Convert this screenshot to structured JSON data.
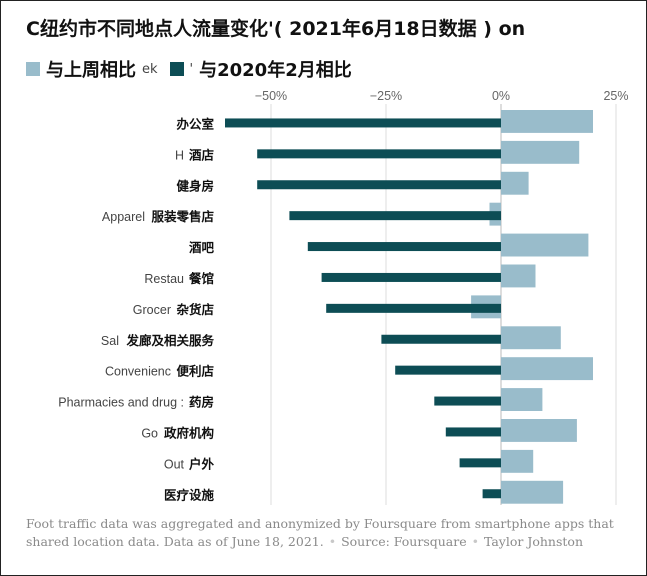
{
  "header": {
    "title_prefix_ghost": "C",
    "title": "纽约市不同地点人流量变化",
    "title_mid_ghost": "'",
    "title_paren": "( 2021年6月18日数据 )",
    "title_suffix_ghost": "on"
  },
  "legend": {
    "week_label": "与上周相比",
    "week_ghost": "ek",
    "feb_ghost": "'",
    "feb_label": "与2020年2月相比"
  },
  "colors": {
    "week": "#99bccb",
    "feb": "#0d4d55",
    "grid": "#dddddd",
    "zero": "#bbbbbb",
    "tick": "#666666"
  },
  "chart_data": {
    "type": "bar",
    "orientation": "horizontal",
    "title": "纽约市不同地点人流量变化( 2021年6月18日数据 )",
    "xlim": [
      -60,
      25
    ],
    "ticks": [
      -50,
      -25,
      0,
      25
    ],
    "tick_labels": [
      "−50%",
      "−25%",
      "0%",
      "25%"
    ],
    "categories": [
      {
        "en": "",
        "zh": "办公室"
      },
      {
        "en": "H",
        "zh": "酒店"
      },
      {
        "en": "",
        "zh": "健身房"
      },
      {
        "en": "Apparel",
        "zh": "服装零售店"
      },
      {
        "en": "",
        "zh": "酒吧"
      },
      {
        "en": "Restau",
        "zh": "餐馆"
      },
      {
        "en": "Grocer",
        "zh": "杂货店"
      },
      {
        "en": "Sal",
        "zh": "发廊及相关服务"
      },
      {
        "en": "Convenienc",
        "zh": "便利店"
      },
      {
        "en": "Pharmacies and drug :",
        "zh": "药房"
      },
      {
        "en": "Go",
        "zh": "政府机构"
      },
      {
        "en": "Out",
        "zh": "户外"
      },
      {
        "en": "",
        "zh": "医疗设施"
      }
    ],
    "series": [
      {
        "name": "与上周相比",
        "values": [
          20,
          17,
          6,
          -2.5,
          19,
          7.5,
          -6.5,
          13,
          20,
          9,
          16.5,
          7,
          13.5
        ]
      },
      {
        "name": "与2020年2月相比",
        "values": [
          -60,
          -53,
          -53,
          -46,
          -42,
          -39,
          -38,
          -26,
          -23,
          -14.5,
          -12,
          -9,
          -4
        ]
      }
    ]
  },
  "footer": {
    "note": "Foot traffic data was aggregated and anonymized by Foursquare from smartphone apps that shared location data. Data as of June 18, 2021.",
    "dot": "•",
    "source": "Source: Foursquare",
    "author": "Taylor Johnston"
  }
}
